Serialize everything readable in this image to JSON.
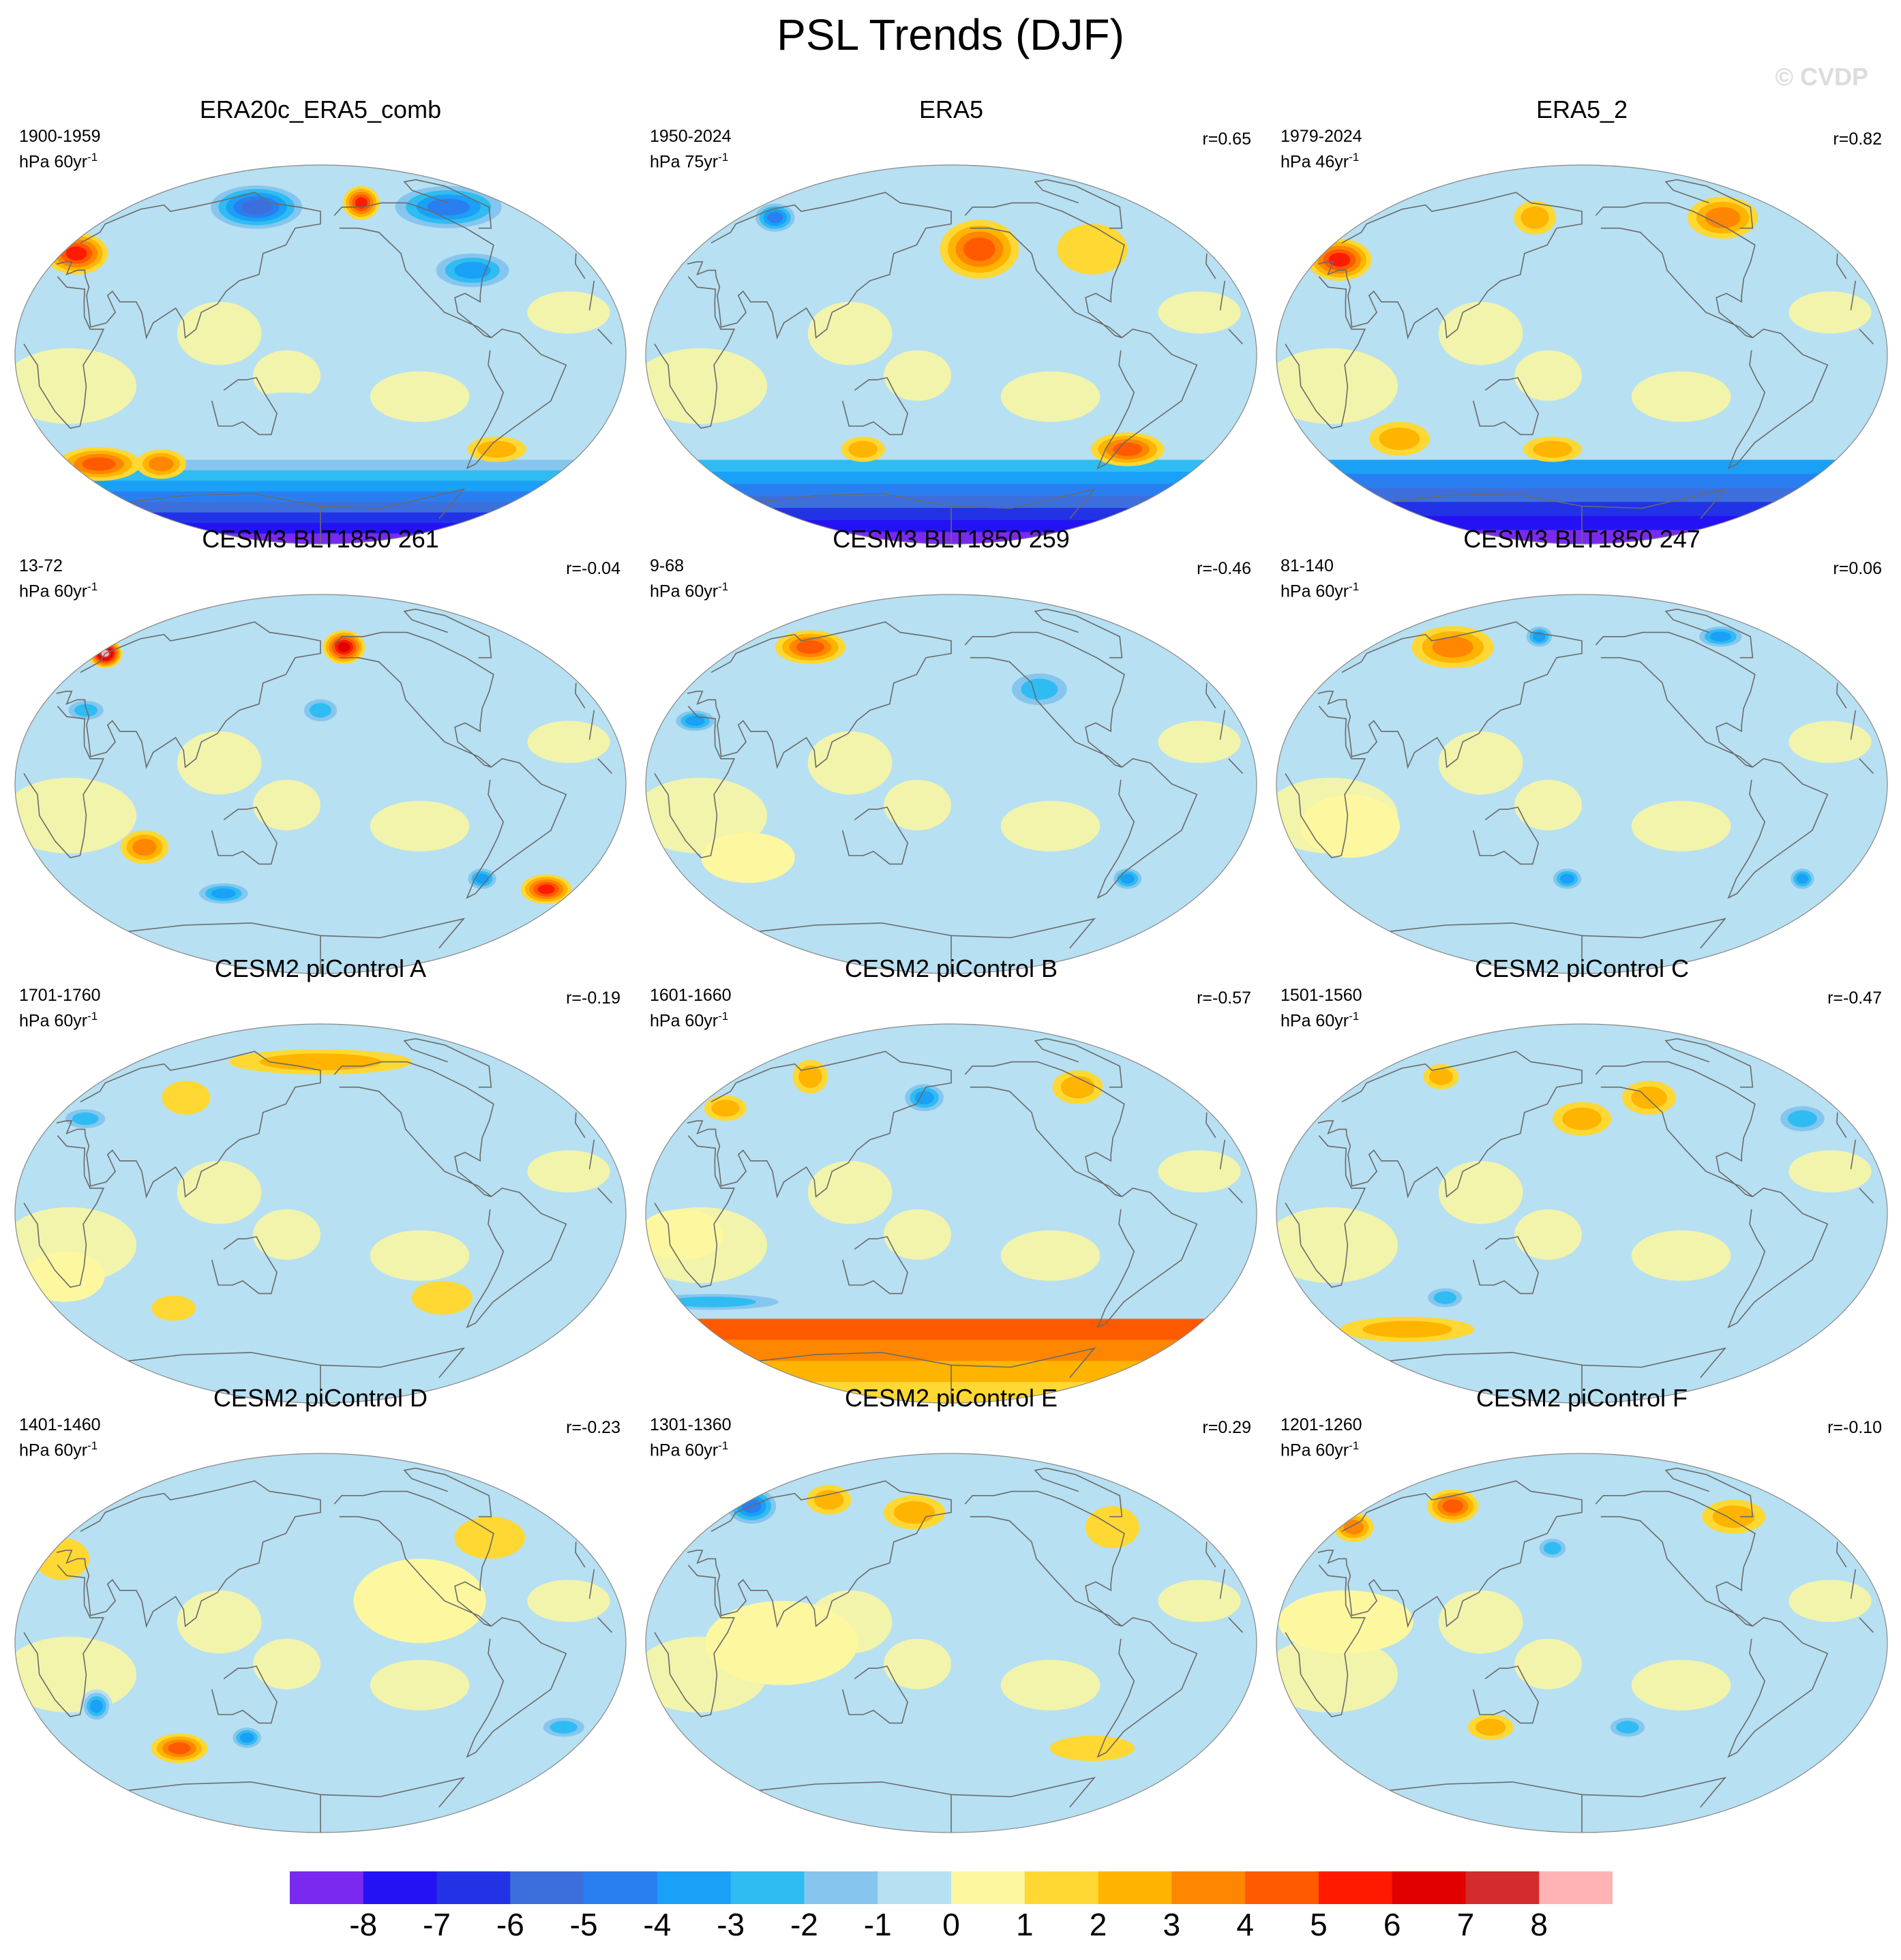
{
  "figure": {
    "title": "PSL Trends (DJF)",
    "copyright": "© CVDP"
  },
  "colors": {
    "levels": [
      "#7a29f0",
      "#2412f5",
      "#2233e6",
      "#3c6fdc",
      "#2a7ff0",
      "#1aa0f6",
      "#2fbcf2",
      "#86c6ee",
      "#b7e0f2",
      "#fdf7a0",
      "#ffd833",
      "#ffb400",
      "#ff8600",
      "#ff5a00",
      "#ff1a00",
      "#e00000",
      "#d42c2c",
      "#ffb3b3"
    ],
    "ocean_bg": "#b7e0f2",
    "coast": "#6a6a6a"
  },
  "chart_data": {
    "type": "map",
    "projection": "Robinson",
    "variable": "PSL",
    "season": "DJF",
    "colorbar_ticks": [
      "-8",
      "-7",
      "-6",
      "-5",
      "-4",
      "-3",
      "-2",
      "-1",
      "0",
      "1",
      "2",
      "3",
      "4",
      "5",
      "6",
      "7",
      "8"
    ],
    "panels": [
      {
        "title": "ERA20c_ERA5_comb",
        "years": "1900-1959",
        "units": "hPa 60yr",
        "units_sup": "-1",
        "corr": "",
        "features": [
          {
            "lon": -170,
            "lat": 48,
            "rx": 22,
            "ry": 10,
            "level": 14
          },
          {
            "lon": -160,
            "lat": -52,
            "rx": 30,
            "ry": 8,
            "level": 13
          },
          {
            "lon": -115,
            "lat": -52,
            "rx": 18,
            "ry": 7,
            "level": 12
          },
          {
            "lon": 40,
            "lat": 72,
            "rx": 18,
            "ry": 8,
            "level": 14
          },
          {
            "lon": 120,
            "lat": 70,
            "rx": 60,
            "ry": 12,
            "level": 4
          },
          {
            "lon": -60,
            "lat": 70,
            "rx": 50,
            "ry": 12,
            "level": 3
          },
          {
            "lon": 100,
            "lat": 40,
            "rx": 30,
            "ry": 10,
            "level": 5
          },
          {
            "lon": 120,
            "lat": -45,
            "rx": 20,
            "ry": 6,
            "level": 11
          },
          {
            "lon": -20,
            "lat": -30,
            "rx": 40,
            "ry": 12,
            "level": 8
          }
        ],
        "southern_band": true,
        "band_levels": [
          7,
          6,
          5,
          4,
          3,
          2,
          1,
          0
        ]
      },
      {
        "title": "ERA5",
        "years": "1950-2024",
        "units": "hPa 75yr",
        "units_sup": "-1",
        "corr": "r=0.65",
        "features": [
          {
            "lon": 20,
            "lat": 50,
            "rx": 28,
            "ry": 14,
            "level": 13
          },
          {
            "lon": -150,
            "lat": 65,
            "rx": 20,
            "ry": 8,
            "level": 4
          },
          {
            "lon": 120,
            "lat": -45,
            "rx": 25,
            "ry": 8,
            "level": 13
          },
          {
            "lon": -60,
            "lat": -45,
            "rx": 15,
            "ry": 6,
            "level": 11
          },
          {
            "lon": 100,
            "lat": 50,
            "rx": 25,
            "ry": 12,
            "level": 10
          },
          {
            "lon": -100,
            "lat": 30,
            "rx": 20,
            "ry": 10,
            "level": 8
          }
        ],
        "southern_band": true,
        "band_levels": [
          6,
          5,
          4,
          3,
          2,
          1,
          0
        ]
      },
      {
        "title": "ERA5_2",
        "years": "1979-2024",
        "units": "hPa 46yr",
        "units_sup": "-1",
        "corr": "r=0.82",
        "features": [
          {
            "lon": -165,
            "lat": 45,
            "rx": 22,
            "ry": 10,
            "level": 14
          },
          {
            "lon": 120,
            "lat": 65,
            "rx": 30,
            "ry": 10,
            "level": 12
          },
          {
            "lon": -40,
            "lat": 65,
            "rx": 18,
            "ry": 8,
            "level": 11
          },
          {
            "lon": -120,
            "lat": -40,
            "rx": 20,
            "ry": 8,
            "level": 11
          },
          {
            "lon": -20,
            "lat": -45,
            "rx": 20,
            "ry": 6,
            "level": 11
          },
          {
            "lon": 90,
            "lat": 15,
            "rx": 30,
            "ry": 15,
            "level": 8
          }
        ],
        "southern_band": true,
        "band_levels": [
          5,
          4,
          3,
          2,
          1,
          0
        ]
      },
      {
        "title": "CESM3 BLT1850 261",
        "years": "13-72",
        "units": "hPa 60yr",
        "units_sup": "-1",
        "corr": "r=-0.04",
        "features": [
          {
            "lon": -175,
            "lat": 62,
            "rx": 14,
            "ry": 7,
            "level": 17
          },
          {
            "lon": 20,
            "lat": 65,
            "rx": 18,
            "ry": 8,
            "level": 15
          },
          {
            "lon": 160,
            "lat": -50,
            "rx": 18,
            "ry": 7,
            "level": 14
          },
          {
            "lon": -110,
            "lat": -30,
            "rx": 15,
            "ry": 8,
            "level": 12
          },
          {
            "lon": -70,
            "lat": -52,
            "rx": 22,
            "ry": 6,
            "level": 5
          },
          {
            "lon": -150,
            "lat": 35,
            "rx": 15,
            "ry": 6,
            "level": 6
          },
          {
            "lon": 110,
            "lat": -45,
            "rx": 12,
            "ry": 6,
            "level": 5
          },
          {
            "lon": 0,
            "lat": 35,
            "rx": 14,
            "ry": 7,
            "level": 6
          }
        ],
        "southern_band": false
      },
      {
        "title": "CESM3 BLT1850 259",
        "years": "9-68",
        "units": "hPa 60yr",
        "units_sup": "-1",
        "corr": "r=-0.46",
        "features": [
          {
            "lon": -120,
            "lat": 65,
            "rx": 30,
            "ry": 8,
            "level": 13
          },
          {
            "lon": -160,
            "lat": 30,
            "rx": 15,
            "ry": 6,
            "level": 5
          },
          {
            "lon": 60,
            "lat": 45,
            "rx": 25,
            "ry": 10,
            "level": 6
          },
          {
            "lon": 120,
            "lat": -45,
            "rx": 12,
            "ry": 6,
            "level": 5
          },
          {
            "lon": -130,
            "lat": -35,
            "rx": 30,
            "ry": 12,
            "level": 9
          }
        ],
        "southern_band": false
      },
      {
        "title": "CESM3 BLT1850 247",
        "years": "81-140",
        "units": "hPa 60yr",
        "units_sup": "-1",
        "corr": "r=0.06",
        "features": [
          {
            "lon": -110,
            "lat": 65,
            "rx": 35,
            "ry": 10,
            "level": 12
          },
          {
            "lon": 150,
            "lat": -45,
            "rx": 10,
            "ry": 6,
            "level": 5
          },
          {
            "lon": -10,
            "lat": -45,
            "rx": 12,
            "ry": 6,
            "level": 5
          },
          {
            "lon": 130,
            "lat": 70,
            "rx": 25,
            "ry": 6,
            "level": 5
          },
          {
            "lon": -40,
            "lat": 70,
            "rx": 15,
            "ry": 6,
            "level": 5
          },
          {
            "lon": -140,
            "lat": -20,
            "rx": 30,
            "ry": 15,
            "level": 9
          }
        ],
        "southern_band": false
      },
      {
        "title": "CESM2 piControl A",
        "years": "1701-1760",
        "units": "hPa 60yr",
        "units_sup": "-1",
        "corr": "r=-0.19",
        "features": [
          {
            "lon": 0,
            "lat": 72,
            "rx": 90,
            "ry": 6,
            "level": 11
          },
          {
            "lon": -100,
            "lat": 55,
            "rx": 18,
            "ry": 8,
            "level": 10
          },
          {
            "lon": -160,
            "lat": 45,
            "rx": 18,
            "ry": 6,
            "level": 6
          },
          {
            "lon": 80,
            "lat": -40,
            "rx": 20,
            "ry": 8,
            "level": 10
          },
          {
            "lon": -100,
            "lat": -45,
            "rx": 15,
            "ry": 6,
            "level": 10
          },
          {
            "lon": -160,
            "lat": -30,
            "rx": 25,
            "ry": 12,
            "level": 9
          }
        ],
        "southern_band": false
      },
      {
        "title": "CESM2 piControl B",
        "years": "1601-1660",
        "units": "hPa 60yr",
        "units_sup": "-1",
        "corr": "r=-0.57",
        "features": [
          {
            "lon": -20,
            "lat": 55,
            "rx": 18,
            "ry": 8,
            "level": 5
          },
          {
            "lon": -120,
            "lat": 65,
            "rx": 15,
            "ry": 8,
            "level": 11
          },
          {
            "lon": -160,
            "lat": 50,
            "rx": 15,
            "ry": 6,
            "level": 11
          },
          {
            "lon": 100,
            "lat": 60,
            "rx": 20,
            "ry": 8,
            "level": 11
          },
          {
            "lon": -160,
            "lat": -42,
            "rx": 60,
            "ry": 5,
            "level": 6
          },
          {
            "lon": -160,
            "lat": -10,
            "rx": 25,
            "ry": 12,
            "level": 9
          }
        ],
        "southern_band": true,
        "band_levels": [
          13,
          12,
          11,
          10
        ]
      },
      {
        "title": "CESM2 piControl C",
        "years": "1501-1560",
        "units": "hPa 60yr",
        "units_sup": "-1",
        "corr": "r=-0.47",
        "features": [
          {
            "lon": 50,
            "lat": 55,
            "rx": 20,
            "ry": 8,
            "level": 11
          },
          {
            "lon": -120,
            "lat": 65,
            "rx": 15,
            "ry": 6,
            "level": 11
          },
          {
            "lon": 0,
            "lat": 45,
            "rx": 20,
            "ry": 8,
            "level": 11
          },
          {
            "lon": -90,
            "lat": -40,
            "rx": 15,
            "ry": 6,
            "level": 6
          },
          {
            "lon": 150,
            "lat": 45,
            "rx": 20,
            "ry": 8,
            "level": 6
          },
          {
            "lon": -130,
            "lat": -55,
            "rx": 50,
            "ry": 6,
            "level": 11
          }
        ],
        "southern_band": false
      },
      {
        "title": "CESM2 piControl D",
        "years": "1401-1460",
        "units": "hPa 60yr",
        "units_sup": "-1",
        "corr": "r=-0.23",
        "features": [
          {
            "lon": -100,
            "lat": -50,
            "rx": 20,
            "ry": 7,
            "level": 13
          },
          {
            "lon": -140,
            "lat": -30,
            "rx": 10,
            "ry": 8,
            "level": 5
          },
          {
            "lon": -50,
            "lat": -45,
            "rx": 12,
            "ry": 6,
            "level": 5
          },
          {
            "lon": 160,
            "lat": -40,
            "rx": 18,
            "ry": 6,
            "level": 6
          },
          {
            "lon": -170,
            "lat": 40,
            "rx": 18,
            "ry": 10,
            "level": 10
          },
          {
            "lon": 120,
            "lat": 50,
            "rx": 25,
            "ry": 10,
            "level": 10
          },
          {
            "lon": 60,
            "lat": 20,
            "rx": 40,
            "ry": 20,
            "level": 9
          }
        ],
        "southern_band": false
      },
      {
        "title": "CESM2 piControl E",
        "years": "1301-1360",
        "units": "hPa 60yr",
        "units_sup": "-1",
        "corr": "r=0.29",
        "features": [
          {
            "lon": -170,
            "lat": 65,
            "rx": 25,
            "ry": 10,
            "level": 4
          },
          {
            "lon": -110,
            "lat": 68,
            "rx": 20,
            "ry": 7,
            "level": 11
          },
          {
            "lon": -30,
            "lat": 62,
            "rx": 25,
            "ry": 8,
            "level": 11
          },
          {
            "lon": 120,
            "lat": 55,
            "rx": 20,
            "ry": 10,
            "level": 10
          },
          {
            "lon": 100,
            "lat": -50,
            "rx": 30,
            "ry": 6,
            "level": 10
          },
          {
            "lon": -100,
            "lat": 0,
            "rx": 45,
            "ry": 20,
            "level": 9
          }
        ],
        "southern_band": false
      },
      {
        "title": "CESM2 piControl F",
        "years": "1201-1260",
        "units": "hPa 60yr",
        "units_sup": "-1",
        "corr": "r=-0.10",
        "features": [
          {
            "lon": -110,
            "lat": 65,
            "rx": 22,
            "ry": 8,
            "level": 13
          },
          {
            "lon": -170,
            "lat": 55,
            "rx": 15,
            "ry": 7,
            "level": 12
          },
          {
            "lon": 120,
            "lat": 60,
            "rx": 25,
            "ry": 8,
            "level": 11
          },
          {
            "lon": -20,
            "lat": 45,
            "rx": 12,
            "ry": 6,
            "level": 6
          },
          {
            "lon": -60,
            "lat": -40,
            "rx": 15,
            "ry": 6,
            "level": 11
          },
          {
            "lon": 30,
            "lat": -40,
            "rx": 15,
            "ry": 6,
            "level": 6
          },
          {
            "lon": -140,
            "lat": 10,
            "rx": 40,
            "ry": 15,
            "level": 9
          }
        ],
        "southern_band": false
      }
    ]
  }
}
